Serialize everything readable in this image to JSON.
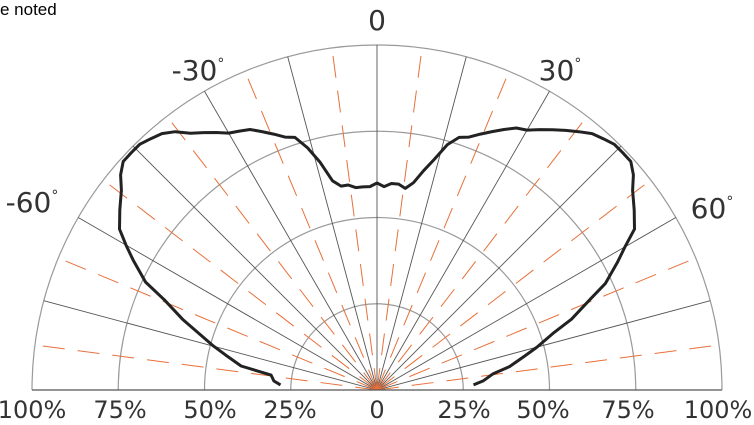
{
  "header_note": "e noted",
  "chart_data": {
    "type": "polar",
    "title": "",
    "angle_tick_labels": [
      "0",
      "-30",
      "30",
      "-60",
      "60"
    ],
    "degree_symbol": "°",
    "radial_tick_labels": [
      "100%",
      "75%",
      "50%",
      "25%",
      "0",
      "25%",
      "50%",
      "75%",
      "100%"
    ],
    "angle_range_deg": [
      -90,
      90
    ],
    "radial_range_pct": [
      0,
      100
    ],
    "rings_pct": [
      25,
      50,
      75,
      100
    ],
    "spokes_deg": [
      -90,
      -75,
      -60,
      -45,
      -30,
      -15,
      0,
      15,
      30,
      45,
      60,
      75,
      90
    ],
    "grid": true,
    "series": [
      {
        "angles_deg": [
          -87,
          -85,
          -82,
          -80,
          -77,
          -75,
          -72,
          -70,
          -67,
          -65,
          -62,
          -60,
          -58,
          -55,
          -52,
          -50,
          -48,
          -46,
          -44,
          -42,
          -40,
          -38,
          -36,
          -34,
          -32,
          -30,
          -28,
          -26,
          -24,
          -22,
          -20,
          -18,
          -16,
          -14,
          -12,
          -10,
          -8,
          -6,
          -4,
          -2,
          0,
          2,
          4,
          6,
          8,
          10,
          12,
          14,
          16,
          18,
          20,
          22,
          24,
          26,
          28,
          30,
          32,
          34,
          36,
          38,
          40,
          42,
          44,
          46,
          48,
          50,
          52,
          55,
          58,
          60,
          62,
          65,
          67,
          70,
          72,
          75,
          77,
          80,
          82,
          85,
          87
        ],
        "values_pct": [
          28,
          30,
          31,
          40,
          45,
          49,
          55,
          60,
          67,
          74,
          80,
          84,
          88,
          91,
          94,
          97,
          99,
          99,
          99,
          98,
          97,
          95,
          92,
          90,
          88,
          86,
          85,
          84,
          82,
          80,
          78,
          77,
          73,
          68,
          62,
          60,
          60,
          59,
          59,
          59,
          60,
          59,
          60,
          60,
          59,
          61,
          65,
          69,
          74,
          77,
          78,
          80,
          82,
          84,
          86,
          87,
          89,
          91,
          93,
          95,
          97,
          98,
          99,
          99,
          99,
          97,
          94,
          91,
          88,
          83,
          79,
          73,
          67,
          60,
          54,
          48,
          44,
          39,
          34,
          31,
          28
        ],
        "color": "#222222"
      }
    ],
    "colors": {
      "ring": "#9a9a9a",
      "spoke": "#555555",
      "dash": "#e8703a",
      "curve": "#222222"
    }
  }
}
